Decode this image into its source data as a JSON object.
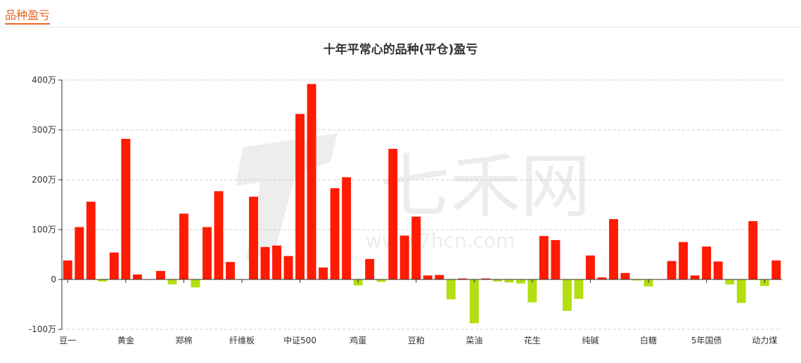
{
  "header": {
    "title": "品种盈亏"
  },
  "watermark": {
    "brand": "七禾网",
    "url": "www.7hcn.com"
  },
  "chart_data": {
    "type": "bar",
    "title": "十年平常心的品种(平仓)盈亏",
    "ylim": [
      -100,
      400
    ],
    "yticks": [
      "-100万",
      "0",
      "100万",
      "200万",
      "300万",
      "400万"
    ],
    "ytick_values": [
      -100,
      0,
      100,
      200,
      300,
      400
    ],
    "grid": true,
    "colors": {
      "positive": "#ff1a00",
      "negative": "#b3de0f"
    },
    "categories": [
      "豆一",
      "",
      "",
      "",
      "",
      "黄金",
      "",
      "",
      "",
      "",
      "郑棉",
      "",
      "",
      "",
      "",
      "纤维板",
      "",
      "",
      "",
      "",
      "中证500",
      "",
      "",
      "",
      "",
      "鸡蛋",
      "",
      "",
      "",
      "",
      "豆粕",
      "",
      "",
      "",
      "",
      "菜油",
      "",
      "",
      "",
      "",
      "花生",
      "",
      "",
      "",
      "",
      "纯碱",
      "",
      "",
      "",
      "",
      "白糖",
      "",
      "",
      "",
      "",
      "5年国债",
      "",
      "",
      "",
      "",
      "动力煤",
      ""
    ],
    "values": [
      38,
      105,
      156,
      -4,
      54,
      282,
      10,
      0,
      17,
      -10,
      132,
      -16,
      105,
      177,
      35,
      -1,
      166,
      65,
      68,
      47,
      332,
      392,
      24,
      183,
      205,
      -12,
      41,
      -5,
      262,
      88,
      126,
      8,
      9,
      -40,
      2,
      -88,
      2,
      -4,
      -6,
      -8,
      -46,
      87,
      79,
      -63,
      -39,
      48,
      4,
      121,
      13,
      -2,
      -14,
      0,
      37,
      75,
      8,
      66,
      36,
      -10,
      -47,
      117,
      -13,
      38
    ]
  }
}
